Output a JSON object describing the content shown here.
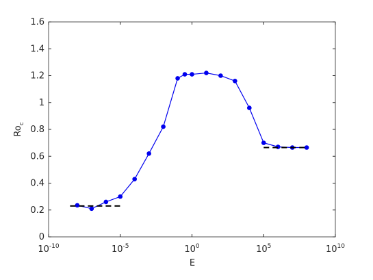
{
  "chart_data": {
    "type": "line",
    "xlabel": "E",
    "ylabel": "Ro",
    "ylabel_subscript": "c",
    "xscale": "log",
    "xlim": [
      1e-10,
      10000000000.0
    ],
    "xticks": [
      {
        "value": 1e-10,
        "label": "10",
        "superscript": "-10"
      },
      {
        "value": 1e-05,
        "label": "10",
        "superscript": "-5"
      },
      {
        "value": 1,
        "label": "10",
        "superscript": "0"
      },
      {
        "value": 100000.0,
        "label": "10",
        "superscript": "5"
      },
      {
        "value": 10000000000.0,
        "label": "10",
        "superscript": "10"
      }
    ],
    "ylim": [
      0,
      1.6
    ],
    "yticks": [
      0,
      0.2,
      0.4,
      0.6,
      0.8,
      1,
      1.2,
      1.4,
      1.6
    ],
    "grid": false,
    "series": [
      {
        "color": "#0000ee",
        "line": "solid",
        "marker": "o",
        "x": [
          1e-08,
          1e-07,
          1e-06,
          1e-05,
          0.0001,
          0.001,
          0.01,
          0.1,
          0.316,
          1,
          10,
          100,
          1000,
          10000.0,
          100000.0,
          1000000.0,
          10000000.0,
          100000000.0
        ],
        "values": [
          0.235,
          0.21,
          0.26,
          0.3,
          0.43,
          0.62,
          0.82,
          1.18,
          1.21,
          1.21,
          1.22,
          1.2,
          1.16,
          0.96,
          0.7,
          0.67,
          0.665,
          0.665
        ]
      },
      {
        "color": "#000000",
        "line": "dashed",
        "x": [
          3.16e-09,
          1e-05
        ],
        "values": [
          0.23,
          0.23
        ]
      },
      {
        "color": "#000000",
        "line": "dashed",
        "x": [
          100000.0,
          100000000.0
        ],
        "values": [
          0.665,
          0.665
        ]
      }
    ]
  }
}
